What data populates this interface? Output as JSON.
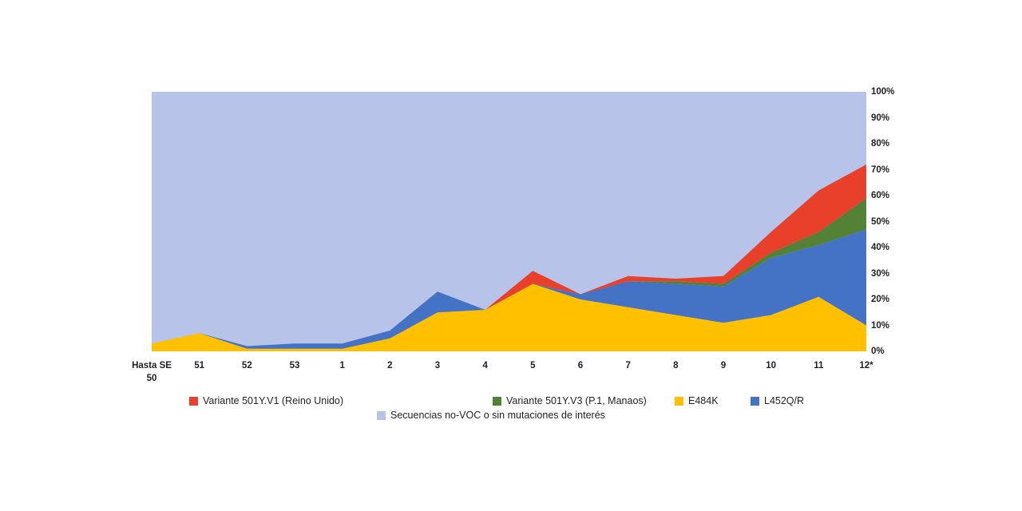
{
  "chart_data": {
    "type": "area",
    "subtype": "stacked-percentage",
    "title": "",
    "xlabel": "",
    "ylabel": "",
    "ylim": [
      0,
      100
    ],
    "grid": false,
    "legend_position": "bottom",
    "categories": [
      "Hasta SE 50",
      "51",
      "52",
      "53",
      "1",
      "2",
      "3",
      "4",
      "5",
      "6",
      "7",
      "8",
      "9",
      "10",
      "11",
      "12*"
    ],
    "x_tick_lines": [
      [
        "Hasta SE",
        "50"
      ],
      [
        "51"
      ],
      [
        "52"
      ],
      [
        "53"
      ],
      [
        "1"
      ],
      [
        "2"
      ],
      [
        "3"
      ],
      [
        "4"
      ],
      [
        "5"
      ],
      [
        "6"
      ],
      [
        "7"
      ],
      [
        "8"
      ],
      [
        "9"
      ],
      [
        "10"
      ],
      [
        "11"
      ],
      [
        "12*"
      ]
    ],
    "y_ticks": [
      "0%",
      "10%",
      "20%",
      "30%",
      "40%",
      "50%",
      "60%",
      "70%",
      "80%",
      "90%",
      "100%"
    ],
    "background_series": {
      "name": "Secuencias no-VOC o sin mutaciones de interés",
      "color": "#b7c3e8",
      "note": "fills remainder to 100%"
    },
    "series": [
      {
        "name": "E484K",
        "color": "#ffc000",
        "values": [
          3,
          7,
          1,
          1,
          1,
          5,
          15,
          16,
          26,
          20,
          17,
          14,
          11,
          14,
          21,
          10
        ]
      },
      {
        "name": "L452Q/R",
        "color": "#4472c4",
        "values": [
          0,
          0,
          1,
          2,
          2,
          3,
          8,
          0,
          0,
          2,
          10,
          12,
          14,
          22,
          20,
          37
        ]
      },
      {
        "name": "Variante 501Y.V3 (P.1, Manaos)",
        "color": "#538135",
        "values": [
          0,
          0,
          0,
          0,
          0,
          0,
          0,
          0,
          0,
          0,
          0,
          1,
          1,
          2,
          5,
          12
        ]
      },
      {
        "name": "Variante 501Y.V1 (Reino Unido)",
        "color": "#e8402b",
        "values": [
          0,
          0,
          0,
          0,
          0,
          0,
          0,
          0,
          5,
          0,
          2,
          1,
          3,
          8,
          16,
          13
        ]
      }
    ]
  },
  "legend": {
    "rows": [
      [
        {
          "label": "Variante 501Y.V1 (Reino Unido)",
          "color": "#e8402b"
        },
        {
          "label": "Variante 501Y.V3 (P.1, Manaos)",
          "color": "#538135"
        },
        {
          "label": "E484K",
          "color": "#ffc000"
        },
        {
          "label": "L452Q/R",
          "color": "#4472c4"
        }
      ],
      [
        {
          "label": "Secuencias no-VOC o sin mutaciones de interés",
          "color": "#b7c3e8"
        }
      ]
    ]
  }
}
